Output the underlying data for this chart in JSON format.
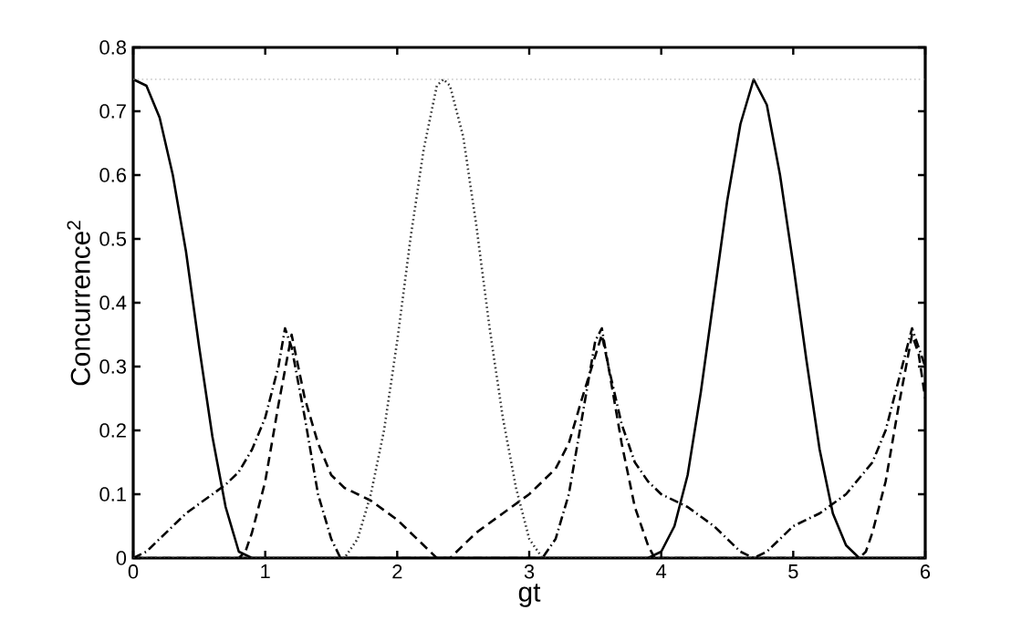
{
  "chart_data": {
    "type": "line",
    "xlabel": "gt",
    "ylabel": "Concurrence$^{2}$",
    "xlim": [
      0,
      6
    ],
    "ylim": [
      0,
      0.8
    ],
    "xticks": [
      0,
      1,
      2,
      3,
      4,
      5,
      6
    ],
    "yticks": [
      0,
      0.1,
      0.2,
      0.3,
      0.4,
      0.5,
      0.6,
      0.7,
      0.8
    ],
    "grid": false,
    "marker": "none",
    "ref_lines": [
      {
        "axis": "y",
        "value": 0.75,
        "color": "#aaaaaa",
        "line_style": "dotted"
      }
    ],
    "series": [
      {
        "color": "#000000",
        "line_style": "solid",
        "x": [
          0,
          0.1,
          0.2,
          0.3,
          0.4,
          0.5,
          0.6,
          0.7,
          0.8,
          0.9,
          1.5,
          2.2,
          3.0,
          3.9,
          4.0,
          4.1,
          4.2,
          4.3,
          4.4,
          4.5,
          4.6,
          4.7,
          4.8,
          4.9,
          5.0,
          5.1,
          5.2,
          5.3,
          5.4,
          5.5,
          6.0
        ],
        "values": [
          0.75,
          0.74,
          0.69,
          0.6,
          0.48,
          0.33,
          0.19,
          0.08,
          0.01,
          0,
          0,
          0,
          0,
          0,
          0.01,
          0.05,
          0.13,
          0.26,
          0.41,
          0.56,
          0.68,
          0.75,
          0.71,
          0.6,
          0.46,
          0.31,
          0.17,
          0.07,
          0.02,
          0,
          0
        ]
      },
      {
        "color": "#000000",
        "line_style": "dashed",
        "x": [
          0,
          0.8,
          0.85,
          0.9,
          1.0,
          1.1,
          1.2,
          1.3,
          1.4,
          1.5,
          1.6,
          1.7,
          1.8,
          2.0,
          2.1,
          2.2,
          2.3,
          2.4,
          2.5,
          2.6,
          2.8,
          3.0,
          3.2,
          3.3,
          3.4,
          3.55,
          3.6,
          3.7,
          3.8,
          3.9,
          3.95,
          5.5,
          5.55,
          5.6,
          5.7,
          5.8,
          5.9,
          5.95,
          6.0
        ],
        "values": [
          0,
          0,
          0.01,
          0.04,
          0.12,
          0.24,
          0.35,
          0.25,
          0.18,
          0.13,
          0.11,
          0.1,
          0.09,
          0.06,
          0.04,
          0.02,
          0,
          0,
          0.02,
          0.04,
          0.07,
          0.1,
          0.14,
          0.18,
          0.25,
          0.35,
          0.3,
          0.18,
          0.08,
          0.02,
          0,
          0,
          0.01,
          0.04,
          0.12,
          0.24,
          0.35,
          0.32,
          0.25
        ]
      },
      {
        "color": "#000000",
        "line_style": "dashdot",
        "x": [
          0,
          0.1,
          0.2,
          0.3,
          0.4,
          0.5,
          0.6,
          0.7,
          0.8,
          0.9,
          1.0,
          1.1,
          1.15,
          1.2,
          1.3,
          1.4,
          1.5,
          1.57,
          3.1,
          3.2,
          3.3,
          3.4,
          3.5,
          3.55,
          3.6,
          3.7,
          3.8,
          3.9,
          4.0,
          4.2,
          4.4,
          4.6,
          4.7,
          4.8,
          5.0,
          5.2,
          5.4,
          5.6,
          5.7,
          5.8,
          5.9,
          6.0
        ],
        "values": [
          0,
          0.01,
          0.03,
          0.05,
          0.07,
          0.085,
          0.1,
          0.115,
          0.135,
          0.17,
          0.22,
          0.3,
          0.36,
          0.33,
          0.22,
          0.1,
          0.03,
          0,
          0,
          0.03,
          0.1,
          0.22,
          0.34,
          0.36,
          0.3,
          0.21,
          0.15,
          0.12,
          0.1,
          0.08,
          0.05,
          0.01,
          0,
          0.01,
          0.05,
          0.07,
          0.1,
          0.15,
          0.2,
          0.28,
          0.36,
          0.3
        ]
      },
      {
        "color": "#333333",
        "line_style": "dotted",
        "x": [
          0,
          1.6,
          1.7,
          1.8,
          1.9,
          2.0,
          2.1,
          2.2,
          2.3,
          2.35,
          2.4,
          2.5,
          2.6,
          2.7,
          2.8,
          2.9,
          3.0,
          3.1,
          6.0
        ],
        "values": [
          0,
          0,
          0.03,
          0.1,
          0.2,
          0.34,
          0.5,
          0.64,
          0.74,
          0.75,
          0.74,
          0.66,
          0.52,
          0.36,
          0.22,
          0.11,
          0.03,
          0,
          0
        ]
      }
    ]
  }
}
